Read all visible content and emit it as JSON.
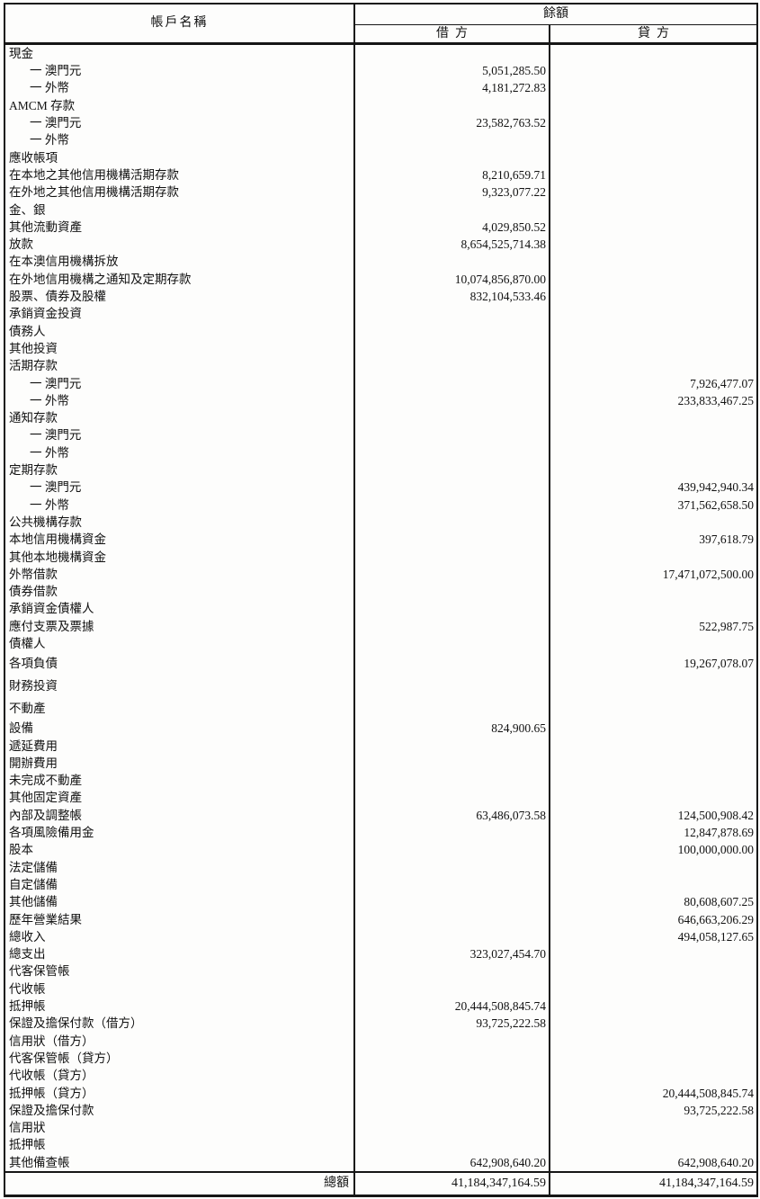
{
  "table": {
    "header": {
      "account": "帳戶名稱",
      "balance": "餘額",
      "debit": "借方",
      "credit": "貸方"
    },
    "rows": [
      {
        "name": "現金"
      },
      {
        "name": "一 澳門元",
        "indent": true,
        "debit": "5,051,285.50"
      },
      {
        "name": "一 外幣",
        "indent": true,
        "debit": "4,181,272.83"
      },
      {
        "name": "AMCM 存款"
      },
      {
        "name": "一 澳門元",
        "indent": true,
        "debit": "23,582,763.52"
      },
      {
        "name": "一 外幣",
        "indent": true
      },
      {
        "name": "應收帳項"
      },
      {
        "name": "在本地之其他信用機構活期存款",
        "debit": "8,210,659.71"
      },
      {
        "name": "在外地之其他信用機構活期存款",
        "debit": "9,323,077.22"
      },
      {
        "name": "金、銀"
      },
      {
        "name": "其他流動資產",
        "debit": "4,029,850.52"
      },
      {
        "name": "放款",
        "debit": "8,654,525,714.38"
      },
      {
        "name": "在本澳信用機構拆放"
      },
      {
        "name": "在外地信用機構之通知及定期存款",
        "debit": "10,074,856,870.00"
      },
      {
        "name": "股票、債券及股權",
        "debit": "832,104,533.46"
      },
      {
        "name": "承銷資金投資"
      },
      {
        "name": "債務人"
      },
      {
        "name": "其他投資"
      },
      {
        "name": "活期存款"
      },
      {
        "name": "一 澳門元",
        "indent": true,
        "credit": "7,926,477.07"
      },
      {
        "name": "一 外幣",
        "indent": true,
        "credit": "233,833,467.25"
      },
      {
        "name": "通知存款"
      },
      {
        "name": "一 澳門元",
        "indent": true
      },
      {
        "name": "一 外幣",
        "indent": true
      },
      {
        "name": "定期存款"
      },
      {
        "name": "一 澳門元",
        "indent": true,
        "credit": "439,942,940.34"
      },
      {
        "name": "一 外幣",
        "indent": true,
        "credit": "371,562,658.50"
      },
      {
        "name": "公共機構存款"
      },
      {
        "name": "本地信用機構資金",
        "credit": "397,618.79"
      },
      {
        "name": "其他本地機構資金"
      },
      {
        "name": "外幣借款",
        "credit": "17,471,072,500.00"
      },
      {
        "name": "債券借款"
      },
      {
        "name": "承銷資金債權人"
      },
      {
        "name": "應付支票及票據",
        "credit": "522,987.75"
      },
      {
        "name": "債權人"
      },
      {
        "name": "各項負債",
        "tall": true,
        "credit": "19,267,078.07"
      },
      {
        "name": "財務投資",
        "tall": true
      },
      {
        "name": "不動產",
        "tall": true
      },
      {
        "name": "設備",
        "debit": "824,900.65"
      },
      {
        "name": "遞延費用"
      },
      {
        "name": "開辦費用"
      },
      {
        "name": "未完成不動產"
      },
      {
        "name": "其他固定資產"
      },
      {
        "name": "內部及調整帳",
        "debit": "63,486,073.58",
        "credit": "124,500,908.42"
      },
      {
        "name": "各項風險備用金",
        "credit": "12,847,878.69"
      },
      {
        "name": "股本",
        "credit": "100,000,000.00"
      },
      {
        "name": "法定儲備"
      },
      {
        "name": "自定儲備"
      },
      {
        "name": "其他儲備",
        "credit": "80,608,607.25"
      },
      {
        "name": "歷年營業結果",
        "credit": "646,663,206.29"
      },
      {
        "name": "總收入",
        "credit": "494,058,127.65"
      },
      {
        "name": "總支出",
        "debit": "323,027,454.70"
      },
      {
        "name": "代客保管帳"
      },
      {
        "name": "代收帳"
      },
      {
        "name": "抵押帳",
        "debit": "20,444,508,845.74"
      },
      {
        "name": "保證及擔保付款（借方）",
        "debit": "93,725,222.58"
      },
      {
        "name": "信用狀（借方）"
      },
      {
        "name": "代客保管帳（貸方）"
      },
      {
        "name": "代收帳（貸方）"
      },
      {
        "name": "抵押帳（貸方）",
        "credit": "20,444,508,845.74"
      },
      {
        "name": "保證及擔保付款",
        "credit": "93,725,222.58"
      },
      {
        "name": "信用狀"
      },
      {
        "name": "抵押帳"
      },
      {
        "name": "其他備查帳",
        "debit": "642,908,640.20",
        "credit": "642,908,640.20"
      }
    ],
    "total": {
      "label": "總額",
      "debit": "41,184,347,164.59",
      "credit": "41,184,347,164.59"
    }
  }
}
